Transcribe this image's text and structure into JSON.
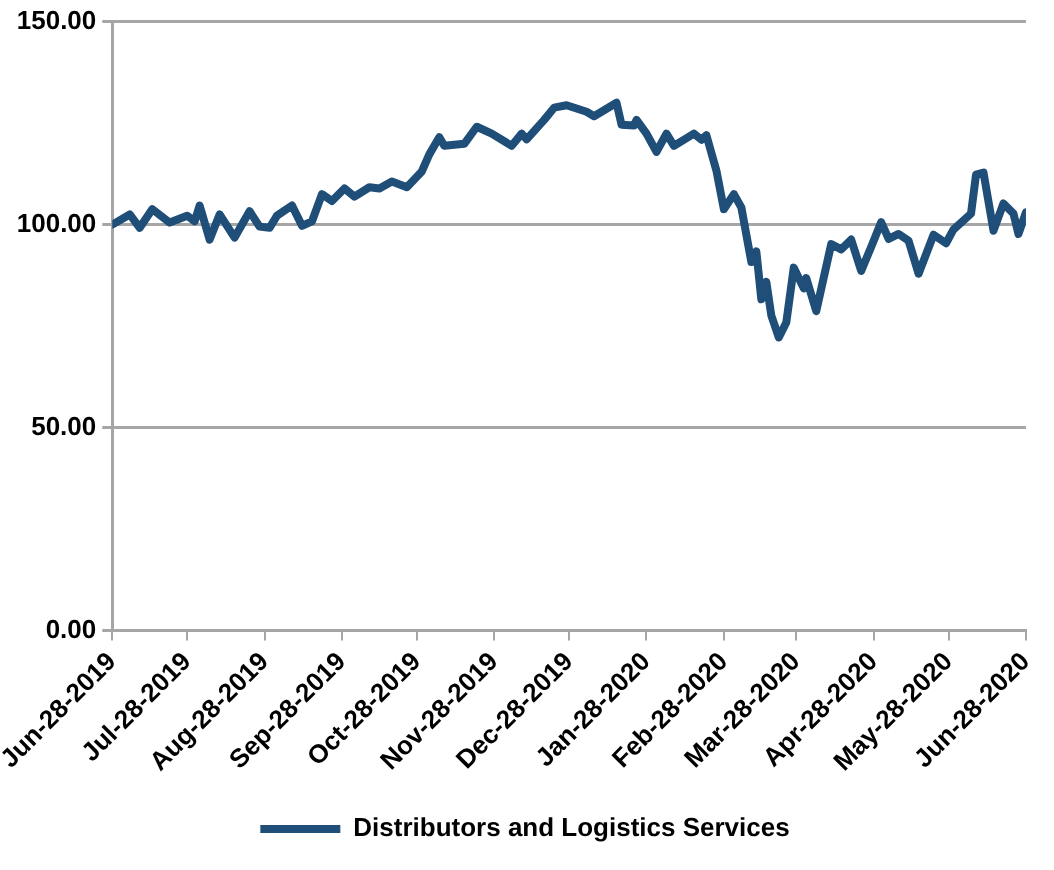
{
  "chart_data": {
    "type": "line",
    "x": [
      "2019-06-28",
      "2019-07-05",
      "2019-07-09",
      "2019-07-14",
      "2019-07-21",
      "2019-07-28",
      "2019-07-31",
      "2019-08-02",
      "2019-08-06",
      "2019-08-10",
      "2019-08-16",
      "2019-08-22",
      "2019-08-26",
      "2019-08-30",
      "2019-09-02",
      "2019-09-08",
      "2019-09-12",
      "2019-09-16",
      "2019-09-20",
      "2019-09-24",
      "2019-09-29",
      "2019-10-03",
      "2019-10-09",
      "2019-10-13",
      "2019-10-18",
      "2019-10-24",
      "2019-10-30",
      "2019-11-02",
      "2019-11-06",
      "2019-11-08",
      "2019-11-16",
      "2019-11-21",
      "2019-11-27",
      "2019-12-05",
      "2019-12-09",
      "2019-12-11",
      "2019-12-18",
      "2019-12-22",
      "2019-12-27",
      "2020-01-04",
      "2020-01-07",
      "2020-01-16",
      "2020-01-18",
      "2020-01-23",
      "2020-01-24",
      "2020-01-28",
      "2020-02-01",
      "2020-02-05",
      "2020-02-08",
      "2020-02-16",
      "2020-02-19",
      "2020-02-21",
      "2020-02-25",
      "2020-02-28",
      "2020-03-03",
      "2020-03-06",
      "2020-03-10",
      "2020-03-12",
      "2020-03-14",
      "2020-03-16",
      "2020-03-18",
      "2020-03-21",
      "2020-03-24",
      "2020-03-27",
      "2020-03-31",
      "2020-04-01",
      "2020-04-05",
      "2020-04-11",
      "2020-04-15",
      "2020-04-19",
      "2020-04-23",
      "2020-04-27",
      "2020-05-01",
      "2020-05-04",
      "2020-05-08",
      "2020-05-12",
      "2020-05-16",
      "2020-05-22",
      "2020-05-27",
      "2020-05-30",
      "2020-06-06",
      "2020-06-08",
      "2020-06-11",
      "2020-06-15",
      "2020-06-19",
      "2020-06-23",
      "2020-06-25",
      "2020-06-28"
    ],
    "series": [
      {
        "name": "Distributors and Logistics Services",
        "color": "#1f4e79",
        "values": [
          100,
          102.5,
          99.2,
          103.8,
          100.5,
          102.2,
          100.8,
          104.7,
          96.3,
          102.5,
          96.8,
          103.3,
          99.5,
          99.2,
          102.2,
          104.7,
          99.7,
          100.8,
          107.5,
          105.8,
          108.9,
          106.9,
          109.2,
          108.9,
          110.6,
          109.2,
          113.1,
          117.3,
          121.5,
          119.4,
          119.9,
          124.1,
          122.4,
          119.4,
          122.4,
          121,
          125.8,
          128.8,
          129.4,
          127.8,
          126.7,
          130,
          124.6,
          124.4,
          125.8,
          122.4,
          117.9,
          122.4,
          119.4,
          122.4,
          120.9,
          122,
          113.3,
          103.8,
          107.5,
          104.2,
          90.8,
          93.4,
          81.6,
          85.9,
          77.6,
          72.2,
          75.9,
          89.4,
          84.3,
          86.8,
          78.7,
          95.2,
          93.9,
          96.3,
          88.6,
          94.5,
          100.6,
          96.5,
          97.7,
          96,
          87.9,
          97.5,
          95.4,
          98.8,
          102.7,
          112.3,
          112.8,
          98.5,
          105.2,
          102.7,
          97.7,
          103
        ]
      }
    ],
    "xlim": [
      "2019-06-28",
      "2020-06-28"
    ],
    "xticks": [
      {
        "value": "2019-06-28",
        "label": "Jun-28-2019"
      },
      {
        "value": "2019-07-28",
        "label": "Jul-28-2019"
      },
      {
        "value": "2019-08-28",
        "label": "Aug-28-2019"
      },
      {
        "value": "2019-09-28",
        "label": "Sep-28-2019"
      },
      {
        "value": "2019-10-28",
        "label": "Oct-28-2019"
      },
      {
        "value": "2019-11-28",
        "label": "Nov-28-2019"
      },
      {
        "value": "2019-12-28",
        "label": "Dec-28-2019"
      },
      {
        "value": "2020-01-28",
        "label": "Jan-28-2020"
      },
      {
        "value": "2020-02-28",
        "label": "Feb-28-2020"
      },
      {
        "value": "2020-03-28",
        "label": "Mar-28-2020"
      },
      {
        "value": "2020-04-28",
        "label": "Apr-28-2020"
      },
      {
        "value": "2020-05-28",
        "label": "May-28-2020"
      },
      {
        "value": "2020-06-28",
        "label": "Jun-28-2020"
      }
    ],
    "ylim": [
      0,
      150
    ],
    "yticks": [
      {
        "value": 0,
        "label": "0.00"
      },
      {
        "value": 50,
        "label": "50.00"
      },
      {
        "value": 100,
        "label": "100.00"
      },
      {
        "value": 150,
        "label": "150.00"
      }
    ],
    "grid": "y",
    "legend": "bottom",
    "marker": "none",
    "line_style": "solid"
  }
}
